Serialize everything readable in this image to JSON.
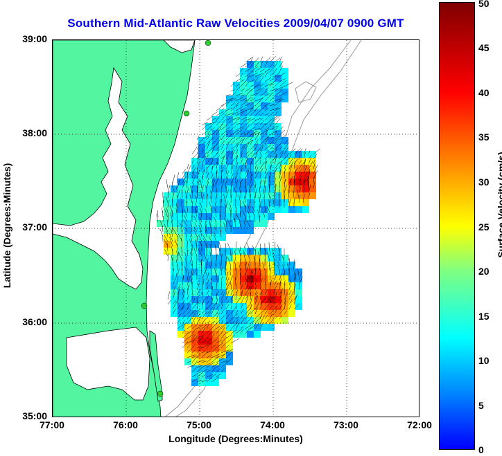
{
  "title": "Southern Mid-Atlantic Raw Velocities 2009/04/07 0900 GMT",
  "x_axis": {
    "label": "Longitude (Degrees:Minutes)",
    "ticks": [
      "77:00",
      "76:00",
      "75:00",
      "74:00",
      "73:00",
      "72:00"
    ]
  },
  "y_axis": {
    "label": "Latitude (Degrees:Minutes)",
    "ticks": [
      "39:00",
      "38:00",
      "37:00",
      "36:00",
      "35:00"
    ]
  },
  "colorbar": {
    "label": "Surface Velocity (cm/s)",
    "ticks": [
      "50",
      "45",
      "40",
      "35",
      "30",
      "25",
      "20",
      "15",
      "10",
      "5",
      "0"
    ],
    "colors": [
      "#0000ff",
      "#00ffff",
      "#ffff00",
      "#ff0000",
      "#800000"
    ]
  },
  "colors": {
    "land": "#54f5a0",
    "coastline": "#000000",
    "bathymetry": "#999999",
    "vector": "#000000",
    "station": "#2ecc2e"
  }
}
